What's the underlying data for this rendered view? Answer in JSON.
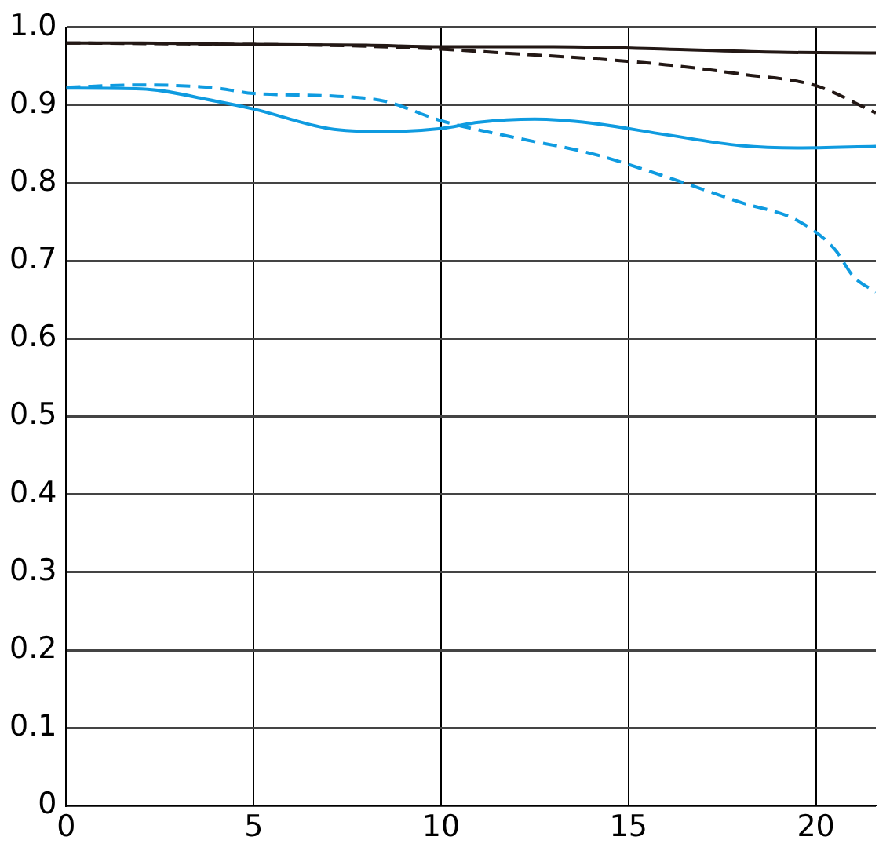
{
  "chart_data": {
    "type": "line",
    "xlim": [
      0,
      21.6
    ],
    "xticks": [
      0,
      5,
      10,
      15,
      20
    ],
    "ylim": [
      0,
      1
    ],
    "yticks": [
      {
        "value": 0,
        "label": "0"
      },
      0.1,
      0.2,
      0.3,
      0.4,
      0.5,
      0.6,
      0.7,
      0.8,
      0.9,
      {
        "value": 1,
        "label": "1.0"
      }
    ],
    "grid": true,
    "legend": false,
    "marker": "none",
    "series": [
      {
        "color": "#231815",
        "line_style": "solid",
        "x": [
          0,
          2,
          5,
          8,
          10,
          13,
          16,
          19,
          21.6
        ],
        "values": [
          0.98,
          0.98,
          0.978,
          0.977,
          0.975,
          0.975,
          0.972,
          0.968,
          0.967
        ]
      },
      {
        "color": "#231815",
        "line_style": "dashed",
        "x": [
          0,
          5,
          7,
          10,
          12,
          14,
          16,
          18,
          20,
          21.6
        ],
        "values": [
          0.98,
          0.978,
          0.977,
          0.972,
          0.966,
          0.96,
          0.952,
          0.94,
          0.925,
          0.89
        ]
      },
      {
        "color": "#0f9be0",
        "line_style": "solid",
        "x": [
          0,
          2,
          4,
          5,
          7,
          8.5,
          10,
          11,
          12.5,
          14,
          16,
          18,
          19.5,
          21.6
        ],
        "values": [
          0.922,
          0.921,
          0.905,
          0.895,
          0.87,
          0.866,
          0.87,
          0.878,
          0.882,
          0.877,
          0.862,
          0.848,
          0.845,
          0.847
        ]
      },
      {
        "color": "#0f9be0",
        "line_style": "dashed",
        "x": [
          0,
          2,
          4,
          5,
          7,
          8.5,
          10,
          12,
          14,
          16,
          18,
          19.5,
          20.5,
          21,
          21.6
        ],
        "values": [
          0.923,
          0.926,
          0.922,
          0.915,
          0.912,
          0.905,
          0.88,
          0.858,
          0.838,
          0.808,
          0.775,
          0.752,
          0.715,
          0.68,
          0.66
        ]
      }
    ]
  }
}
